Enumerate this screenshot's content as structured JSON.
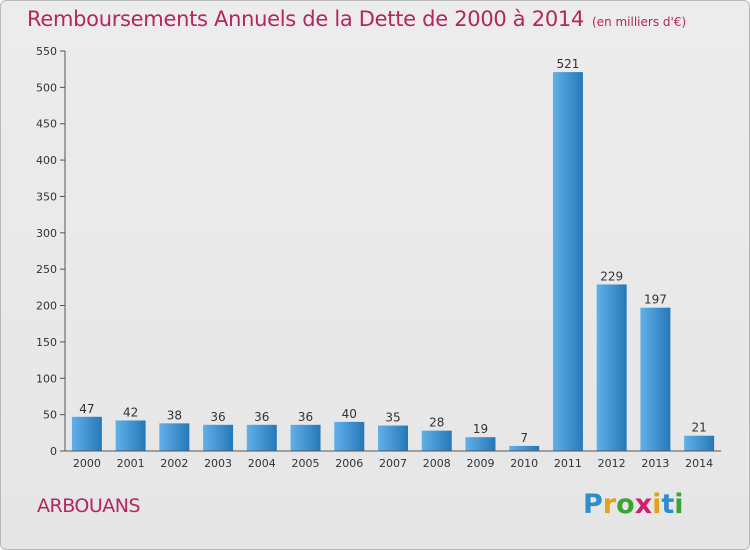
{
  "header": {
    "title": "Remboursements Annuels de la Dette de 2000 à 2014",
    "subtitle": "(en milliers d'€)"
  },
  "footer": {
    "commune": "ARBOUANS",
    "logo_letters": [
      "P",
      "r",
      "o",
      "x",
      "i",
      "t",
      "i"
    ],
    "logo_colors": [
      "#2e8ec9",
      "#e2a21c",
      "#3aa535",
      "#d3206e",
      "#e2a21c",
      "#2e8ec9",
      "#3aa535"
    ]
  },
  "chart_data": {
    "type": "bar",
    "title": "Remboursements Annuels de la Dette de 2000 à 2014",
    "subtitle": "(en milliers d'€)",
    "xlabel": "",
    "ylabel": "",
    "categories": [
      "2000",
      "2001",
      "2002",
      "2003",
      "2004",
      "2005",
      "2006",
      "2007",
      "2008",
      "2009",
      "2010",
      "2011",
      "2012",
      "2013",
      "2014"
    ],
    "values": [
      47,
      42,
      38,
      36,
      36,
      36,
      40,
      35,
      28,
      19,
      7,
      521,
      229,
      197,
      21
    ],
    "ylim": [
      0,
      550
    ],
    "yticks": [
      0,
      50,
      100,
      150,
      200,
      250,
      300,
      350,
      400,
      450,
      500,
      550
    ],
    "grid": false,
    "legend": "none",
    "bar_color_light": "#62b0ea",
    "bar_color_dark": "#2578b8"
  }
}
